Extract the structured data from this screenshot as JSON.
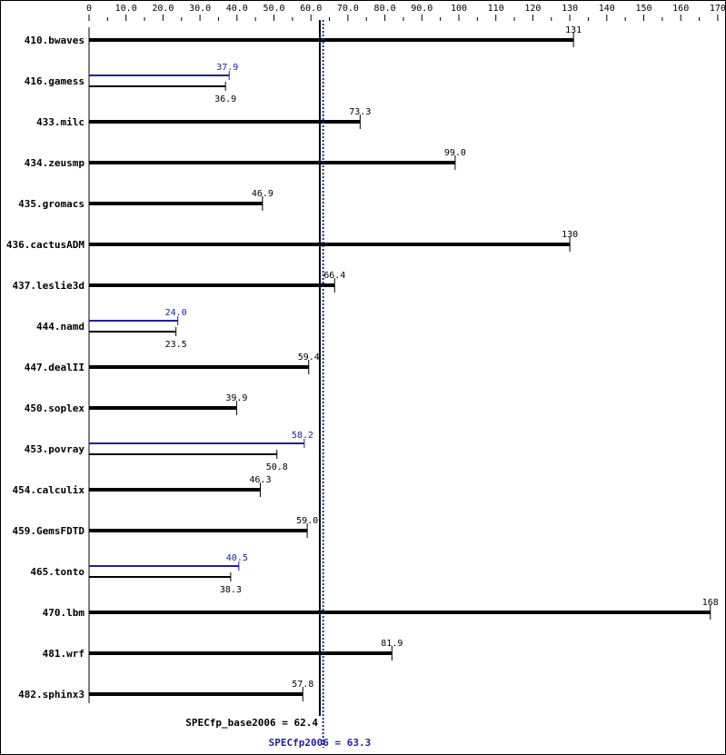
{
  "chart_data": {
    "type": "bar",
    "orientation": "horizontal",
    "title": "",
    "xlim": [
      0,
      170
    ],
    "x_ticks": [
      "0",
      "10.0",
      "20.0",
      "30.0",
      "40.0",
      "50.0",
      "60.0",
      "70.0",
      "80.0",
      "90.0",
      "100",
      "110",
      "120",
      "130",
      "140",
      "150",
      "160",
      "170"
    ],
    "x_tick_values": [
      0,
      10,
      20,
      30,
      40,
      50,
      60,
      70,
      80,
      90,
      100,
      110,
      120,
      130,
      140,
      150,
      160,
      170
    ],
    "colors": {
      "base": "#000000",
      "peak": "#2020a0"
    },
    "categories": [
      "410.bwaves",
      "416.gamess",
      "433.milc",
      "434.zeusmp",
      "435.gromacs",
      "436.cactusADM",
      "437.leslie3d",
      "444.namd",
      "447.dealII",
      "450.soplex",
      "453.povray",
      "454.calculix",
      "459.GemsFDTD",
      "465.tonto",
      "470.lbm",
      "481.wrf",
      "482.sphinx3"
    ],
    "series": [
      {
        "name": "SPECfp_base2006",
        "values": [
          131,
          36.9,
          73.3,
          99.0,
          46.9,
          130,
          66.4,
          23.5,
          59.4,
          39.9,
          50.8,
          46.3,
          59.0,
          38.3,
          168,
          81.9,
          57.8
        ],
        "labels": [
          "131",
          "36.9",
          "73.3",
          "99.0",
          "46.9",
          "130",
          "66.4",
          "23.5",
          "59.4",
          "39.9",
          "50.8",
          "46.3",
          "59.0",
          "38.3",
          "168",
          "81.9",
          "57.8"
        ]
      },
      {
        "name": "SPECfp2006",
        "values": [
          null,
          37.9,
          null,
          null,
          null,
          null,
          null,
          24.0,
          null,
          null,
          58.2,
          null,
          null,
          40.5,
          null,
          null,
          null
        ],
        "labels": [
          null,
          "37.9",
          null,
          null,
          null,
          null,
          null,
          "24.0",
          null,
          null,
          "58.2",
          null,
          null,
          "40.5",
          null,
          null,
          null
        ]
      }
    ],
    "reference_lines": [
      {
        "label": "SPECfp_base2006 = 62.4",
        "value": 62.4,
        "style": "solid",
        "color": "#000000"
      },
      {
        "label": "SPECfp2006 = 63.3",
        "value": 63.3,
        "style": "dotted",
        "color": "#2020a0"
      }
    ]
  }
}
